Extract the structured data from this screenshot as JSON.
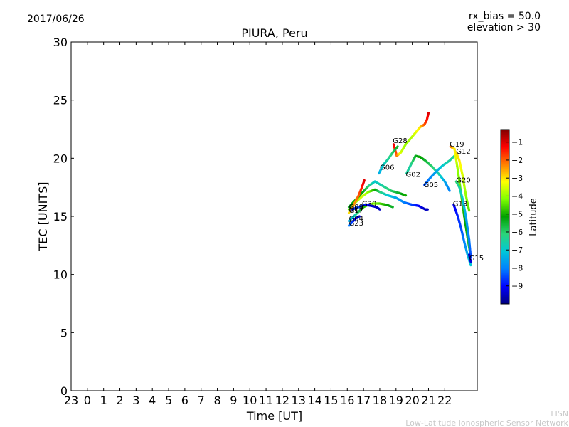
{
  "header": {
    "date": "2017/06/26",
    "rx_bias": "rx_bias = 50.0",
    "elevation": "elevation > 30"
  },
  "footer": {
    "line1": "LISN",
    "line2": "Low-Latitude Ionospheric Sensor Network"
  },
  "colors": {
    "jet": [
      "#00007f",
      "#0000ff",
      "#007fff",
      "#00c8d8",
      "#2bd47a",
      "#00a000",
      "#7fff00",
      "#ffff00",
      "#ff7f00",
      "#ff0000",
      "#7f0000"
    ]
  },
  "chart_data": {
    "type": "line",
    "title": "PIURA, Peru",
    "xlabel": "Time [UT]",
    "ylabel": "TEC [UNITS]",
    "xlim": [
      -1,
      24
    ],
    "ylim": [
      0,
      30
    ],
    "x_ticks": [
      -1,
      0,
      1,
      2,
      3,
      4,
      5,
      6,
      7,
      8,
      9,
      10,
      11,
      12,
      13,
      14,
      15,
      16,
      17,
      18,
      19,
      20,
      21,
      22
    ],
    "x_tick_labels": [
      "23",
      "0",
      "1",
      "2",
      "3",
      "4",
      "5",
      "6",
      "7",
      "8",
      "9",
      "10",
      "11",
      "12",
      "13",
      "14",
      "15",
      "16",
      "17",
      "18",
      "19",
      "20",
      "21",
      "22"
    ],
    "y_ticks": [
      0,
      5,
      10,
      15,
      20,
      25,
      30
    ],
    "y_tick_labels": [
      "0",
      "5",
      "10",
      "15",
      "20",
      "25",
      "30"
    ],
    "colorbar": {
      "label": "Latitude",
      "range": [
        -10,
        -0.3
      ],
      "ticks": [
        -1,
        -2,
        -3,
        -4,
        -5,
        -6,
        -7,
        -8,
        -9
      ],
      "tick_labels": [
        "−1",
        "−2",
        "−3",
        "−4",
        "−5",
        "−6",
        "−7",
        "−8",
        "−9"
      ]
    },
    "series": [
      {
        "name": "G28",
        "label": "G28",
        "label_at": [
          18.8,
          21.3
        ],
        "points": [
          [
            18.85,
            21.2,
            -1.0
          ],
          [
            19.05,
            20.2,
            -2.0
          ],
          [
            19.3,
            20.5,
            -3.5
          ],
          [
            19.6,
            21.2,
            -4.0
          ],
          [
            19.9,
            21.7,
            -3.9
          ],
          [
            20.2,
            22.2,
            -3.5
          ],
          [
            20.5,
            22.7,
            -3.0
          ],
          [
            20.75,
            22.9,
            -2.0
          ],
          [
            20.9,
            23.3,
            -1.5
          ],
          [
            21.0,
            23.9,
            -1.0
          ]
        ]
      },
      {
        "name": "G06",
        "label": "G06",
        "label_at": [
          18.0,
          19.0
        ],
        "points": [
          [
            17.95,
            18.7,
            -7.5
          ],
          [
            18.2,
            19.4,
            -7.0
          ],
          [
            18.5,
            19.9,
            -6.5
          ],
          [
            18.8,
            20.5,
            -6.0
          ],
          [
            19.1,
            21.0,
            -5.5
          ]
        ]
      },
      {
        "name": "G02",
        "label": "G02",
        "label_at": [
          19.6,
          18.4
        ],
        "points": [
          [
            19.65,
            18.7,
            -6.5
          ],
          [
            19.9,
            19.4,
            -6.5
          ],
          [
            20.2,
            20.2,
            -5.5
          ],
          [
            20.5,
            20.1,
            -5.0
          ],
          [
            20.8,
            19.8,
            -5.5
          ],
          [
            21.2,
            19.3,
            -6.0
          ],
          [
            21.6,
            18.7,
            -6.5
          ],
          [
            22.0,
            18.0,
            -7.5
          ],
          [
            22.3,
            17.2,
            -8.0
          ]
        ]
      },
      {
        "name": "G05",
        "label": "G05",
        "label_at": [
          20.7,
          17.5
        ],
        "points": [
          [
            20.75,
            17.7,
            -8.5
          ],
          [
            21.1,
            18.3,
            -8.0
          ],
          [
            21.5,
            18.9,
            -7.5
          ],
          [
            21.9,
            19.4,
            -7.0
          ],
          [
            22.3,
            19.8,
            -6.5
          ],
          [
            22.6,
            20.2,
            -6.5
          ]
        ]
      },
      {
        "name": "G19",
        "label": "G19",
        "label_at": [
          22.3,
          21.0
        ],
        "points": [
          [
            22.35,
            21.0,
            -2.0
          ],
          [
            22.6,
            20.8,
            -3.0
          ],
          [
            22.8,
            19.0,
            -4.0
          ],
          [
            23.0,
            17.0,
            -4.5
          ],
          [
            23.2,
            15.0,
            -5.0
          ],
          [
            23.4,
            13.2,
            -5.5
          ],
          [
            23.6,
            11.5,
            -6.0
          ]
        ]
      },
      {
        "name": "G12",
        "label": "G12",
        "label_at": [
          22.7,
          20.4
        ],
        "points": [
          [
            22.7,
            20.5,
            -3.0
          ],
          [
            22.9,
            19.8,
            -3.0
          ],
          [
            23.1,
            18.5,
            -3.5
          ],
          [
            23.3,
            16.8,
            -4.0
          ],
          [
            23.5,
            15.5,
            -4.5
          ]
        ]
      },
      {
        "name": "G20",
        "label": "G20",
        "label_at": [
          22.7,
          17.9
        ],
        "points": [
          [
            22.7,
            18.0,
            -6.0
          ],
          [
            22.9,
            17.5,
            -6.5
          ],
          [
            23.1,
            16.5,
            -7.0
          ],
          [
            23.3,
            15.0,
            -7.5
          ],
          [
            23.5,
            13.0,
            -8.0
          ],
          [
            23.6,
            11.5,
            -8.5
          ]
        ]
      },
      {
        "name": "G13",
        "label": "G13",
        "label_at": [
          22.5,
          15.9
        ],
        "points": [
          [
            22.55,
            16.0,
            -9.2
          ],
          [
            22.8,
            15.0,
            -8.8
          ],
          [
            23.0,
            14.0,
            -8.5
          ],
          [
            23.2,
            12.8,
            -8.0
          ],
          [
            23.4,
            11.7,
            -7.5
          ],
          [
            23.6,
            10.8,
            -7.0
          ]
        ]
      },
      {
        "name": "G15",
        "label": "G15",
        "label_at": [
          23.5,
          11.2
        ],
        "points": [
          [
            23.5,
            11.7,
            -9.5
          ],
          [
            23.6,
            11.1,
            -9.3
          ]
        ]
      },
      {
        "name": "G30",
        "label": "G30",
        "label_at": [
          16.9,
          15.9
        ],
        "points": [
          [
            16.1,
            15.6,
            -4.5
          ],
          [
            16.5,
            16.2,
            -4.0
          ],
          [
            16.9,
            16.7,
            -3.5
          ],
          [
            17.3,
            17.1,
            -4.0
          ],
          [
            17.7,
            17.3,
            -5.0
          ],
          [
            18.0,
            17.1,
            -6.0
          ],
          [
            18.5,
            16.8,
            -7.0
          ],
          [
            19.0,
            16.6,
            -7.5
          ],
          [
            19.5,
            16.2,
            -8.0
          ],
          [
            20.0,
            16.0,
            -8.5
          ],
          [
            20.4,
            15.9,
            -9.0
          ],
          [
            20.8,
            15.6,
            -9.5
          ],
          [
            20.95,
            15.6,
            -9.5
          ]
        ]
      },
      {
        "name": "G09",
        "label": "G09",
        "label_at": [
          16.1,
          15.6
        ],
        "points": [
          [
            16.1,
            15.8,
            -5.5
          ],
          [
            16.5,
            16.4,
            -5.0
          ],
          [
            16.9,
            17.0,
            -5.0
          ],
          [
            17.3,
            17.6,
            -6.0
          ],
          [
            17.7,
            18.0,
            -7.0
          ],
          [
            18.2,
            17.6,
            -6.5
          ],
          [
            18.7,
            17.2,
            -6.0
          ],
          [
            19.2,
            17.0,
            -5.5
          ],
          [
            19.6,
            16.8,
            -5.0
          ]
        ]
      },
      {
        "name": "G17",
        "label": "G17",
        "label_at": [
          16.1,
          15.3
        ],
        "points": [
          [
            16.1,
            15.3,
            -3.0
          ],
          [
            16.4,
            16.0,
            -2.5
          ],
          [
            16.7,
            16.8,
            -2.0
          ],
          [
            16.9,
            17.5,
            -1.5
          ],
          [
            17.05,
            18.1,
            -1.0
          ]
        ]
      },
      {
        "name": "G04",
        "label": "G04",
        "label_at": [
          16.1,
          14.6
        ],
        "points": [
          [
            16.1,
            14.6,
            -7.5
          ],
          [
            16.4,
            15.0,
            -7.0
          ],
          [
            16.7,
            15.4,
            -6.0
          ],
          [
            17.0,
            15.8,
            -5.0
          ],
          [
            17.3,
            16.0,
            -4.5
          ],
          [
            17.6,
            16.1,
            -4.0
          ],
          [
            18.0,
            16.1,
            -4.5
          ],
          [
            18.4,
            16.0,
            -5.0
          ],
          [
            18.8,
            15.8,
            -5.5
          ]
        ]
      },
      {
        "name": "G23",
        "label": "G23",
        "label_at": [
          16.1,
          14.2
        ],
        "points": [
          [
            16.1,
            14.2,
            -8.0
          ],
          [
            16.3,
            14.5,
            -8.5
          ],
          [
            16.5,
            14.8,
            -9.0
          ],
          [
            16.75,
            15.0,
            -9.5
          ]
        ]
      },
      {
        "name": "G07",
        "label": "G07",
        "label_at": [
          16.1,
          15.4
        ],
        "points": [
          [
            16.3,
            15.6,
            -9.0
          ],
          [
            16.7,
            15.8,
            -8.5
          ],
          [
            17.1,
            16.0,
            -8.8
          ],
          [
            17.5,
            15.9,
            -9.2
          ],
          [
            17.8,
            15.8,
            -9.5
          ],
          [
            18.0,
            15.6,
            -9.5
          ]
        ]
      }
    ]
  }
}
